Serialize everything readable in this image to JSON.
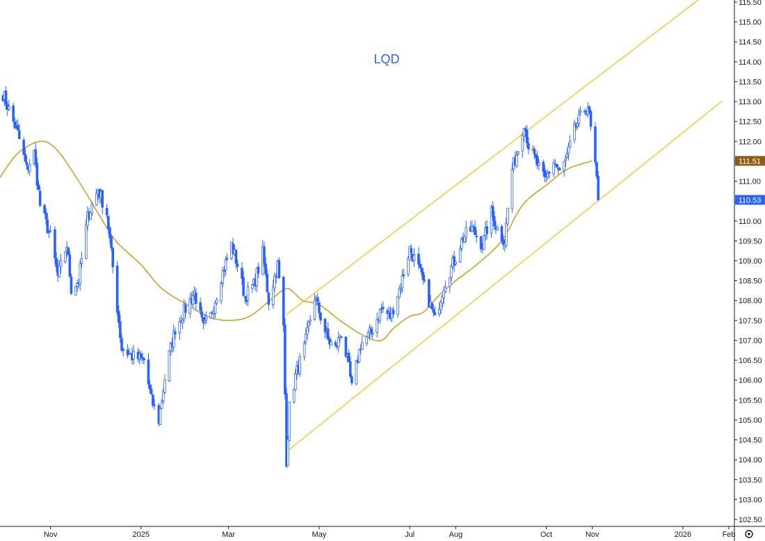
{
  "chart_data": {
    "type": "candlestick",
    "title": "LQD",
    "ylim": [
      102.3,
      115.6
    ],
    "y_ticks": [
      "102.50",
      "103.00",
      "103.50",
      "104.00",
      "104.50",
      "105.00",
      "105.50",
      "106.00",
      "106.50",
      "107.00",
      "107.50",
      "108.00",
      "108.50",
      "109.00",
      "109.50",
      "110.00",
      "110.50",
      "111.00",
      "111.50",
      "112.00",
      "112.50",
      "113.00",
      "113.50",
      "114.00",
      "114.50",
      "115.00",
      "115.50"
    ],
    "x_range": [
      "2024-09-28",
      "2026-02-08"
    ],
    "x_ticks": [
      {
        "date": "2024-11-01",
        "label": "Nov"
      },
      {
        "date": "2025-01-01",
        "label": "2025"
      },
      {
        "date": "2025-03-01",
        "label": "Mar"
      },
      {
        "date": "2025-05-01",
        "label": "May"
      },
      {
        "date": "2025-07-01",
        "label": "Jul"
      },
      {
        "date": "2025-08-01",
        "label": "Aug"
      },
      {
        "date": "2025-10-01",
        "label": "Oct"
      },
      {
        "date": "2025-11-01",
        "label": "Nov"
      },
      {
        "date": "2026-01-01",
        "label": "2026"
      },
      {
        "date": "2026-02-01",
        "label": "Feb"
      }
    ],
    "price_path": [
      [
        "2024-09-30",
        113.2
      ],
      [
        "2024-10-04",
        112.8
      ],
      [
        "2024-10-10",
        112.2
      ],
      [
        "2024-10-16",
        111.3
      ],
      [
        "2024-10-21",
        111.7
      ],
      [
        "2024-10-25",
        110.4
      ],
      [
        "2024-11-01",
        109.6
      ],
      [
        "2024-11-06",
        108.6
      ],
      [
        "2024-11-12",
        109.4
      ],
      [
        "2024-11-15",
        108.3
      ],
      [
        "2024-11-20",
        108.5
      ],
      [
        "2024-11-26",
        110.1
      ],
      [
        "2024-12-03",
        110.8
      ],
      [
        "2024-12-09",
        110.2
      ],
      [
        "2024-12-14",
        108.5
      ],
      [
        "2024-12-19",
        106.8
      ],
      [
        "2024-12-26",
        106.6
      ],
      [
        "2025-01-03",
        106.5
      ],
      [
        "2025-01-08",
        105.5
      ],
      [
        "2025-01-13",
        105.0
      ],
      [
        "2025-01-18",
        106.3
      ],
      [
        "2025-01-24",
        107.3
      ],
      [
        "2025-01-31",
        107.8
      ],
      [
        "2025-02-06",
        108.2
      ],
      [
        "2025-02-12",
        107.3
      ],
      [
        "2025-02-17",
        107.6
      ],
      [
        "2025-02-24",
        108.6
      ],
      [
        "2025-03-03",
        109.4
      ],
      [
        "2025-03-07",
        108.9
      ],
      [
        "2025-03-12",
        108.1
      ],
      [
        "2025-03-18",
        108.4
      ],
      [
        "2025-03-24",
        109.2
      ],
      [
        "2025-03-28",
        108.0
      ],
      [
        "2025-04-03",
        108.9
      ],
      [
        "2025-04-07",
        107.3
      ],
      [
        "2025-04-09",
        104.0
      ],
      [
        "2025-04-11",
        105.3
      ],
      [
        "2025-04-15",
        106.1
      ],
      [
        "2025-04-21",
        106.8
      ],
      [
        "2025-04-28",
        108.1
      ],
      [
        "2025-05-02",
        107.6
      ],
      [
        "2025-05-07",
        107.0
      ],
      [
        "2025-05-12",
        106.8
      ],
      [
        "2025-05-16",
        107.2
      ],
      [
        "2025-05-21",
        106.3
      ],
      [
        "2025-05-23",
        105.8
      ],
      [
        "2025-05-29",
        106.9
      ],
      [
        "2025-06-05",
        107.2
      ],
      [
        "2025-06-12",
        107.8
      ],
      [
        "2025-06-18",
        107.6
      ],
      [
        "2025-06-25",
        108.4
      ],
      [
        "2025-07-01",
        109.3
      ],
      [
        "2025-07-07",
        108.8
      ],
      [
        "2025-07-14",
        108.0
      ],
      [
        "2025-07-18",
        107.5
      ],
      [
        "2025-07-24",
        108.4
      ],
      [
        "2025-07-31",
        109.0
      ],
      [
        "2025-08-06",
        109.6
      ],
      [
        "2025-08-12",
        109.8
      ],
      [
        "2025-08-19",
        109.4
      ],
      [
        "2025-08-25",
        110.2
      ],
      [
        "2025-08-29",
        109.8
      ],
      [
        "2025-09-03",
        109.5
      ],
      [
        "2025-09-05",
        110.3
      ],
      [
        "2025-09-08",
        111.3
      ],
      [
        "2025-09-12",
        111.8
      ],
      [
        "2025-09-16",
        112.5
      ],
      [
        "2025-09-19",
        111.9
      ],
      [
        "2025-09-24",
        111.5
      ],
      [
        "2025-09-30",
        111.0
      ],
      [
        "2025-10-06",
        111.5
      ],
      [
        "2025-10-10",
        111.2
      ],
      [
        "2025-10-15",
        111.6
      ],
      [
        "2025-10-20",
        112.3
      ],
      [
        "2025-10-24",
        112.6
      ],
      [
        "2025-10-29",
        112.9
      ],
      [
        "2025-10-31",
        112.3
      ],
      [
        "2025-11-03",
        111.4
      ],
      [
        "2025-11-05",
        110.53
      ]
    ],
    "moving_average": [
      [
        "2024-09-28",
        111.1
      ],
      [
        "2024-10-10",
        111.7
      ],
      [
        "2024-10-25",
        112.0
      ],
      [
        "2024-11-05",
        111.8
      ],
      [
        "2024-11-20",
        111.0
      ],
      [
        "2024-12-03",
        110.2
      ],
      [
        "2024-12-15",
        109.5
      ],
      [
        "2025-01-01",
        108.9
      ],
      [
        "2025-01-15",
        108.3
      ],
      [
        "2025-02-01",
        107.9
      ],
      [
        "2025-02-15",
        107.6
      ],
      [
        "2025-02-28",
        107.5
      ],
      [
        "2025-03-15",
        107.6
      ],
      [
        "2025-04-01",
        108.1
      ],
      [
        "2025-04-10",
        108.3
      ],
      [
        "2025-04-20",
        108.0
      ],
      [
        "2025-05-01",
        107.9
      ],
      [
        "2025-05-15",
        107.5
      ],
      [
        "2025-06-01",
        107.1
      ],
      [
        "2025-06-12",
        107.0
      ],
      [
        "2025-06-20",
        107.3
      ],
      [
        "2025-07-01",
        107.6
      ],
      [
        "2025-07-10",
        107.7
      ],
      [
        "2025-07-20",
        108.1
      ],
      [
        "2025-08-01",
        108.5
      ],
      [
        "2025-08-15",
        108.9
      ],
      [
        "2025-09-01",
        109.5
      ],
      [
        "2025-09-15",
        110.4
      ],
      [
        "2025-10-01",
        110.9
      ],
      [
        "2025-10-15",
        111.3
      ],
      [
        "2025-11-01",
        111.51
      ]
    ],
    "trend_lines": [
      {
        "from": [
          "2025-04-09",
          107.65
        ],
        "to": [
          "2026-01-13",
          115.6
        ]
      },
      {
        "from": [
          "2025-04-09",
          104.2
        ],
        "to": [
          "2026-01-27",
          113.0
        ]
      }
    ],
    "last_price": "110.53",
    "ma_value": "111.51",
    "colors": {
      "candle": "#2962ff",
      "moving_average": "#c9a227",
      "trend_line": "#f3c935",
      "last_price_badge": "#2962ff",
      "ma_badge": "#8d5b16",
      "title": "#2962ff"
    }
  }
}
